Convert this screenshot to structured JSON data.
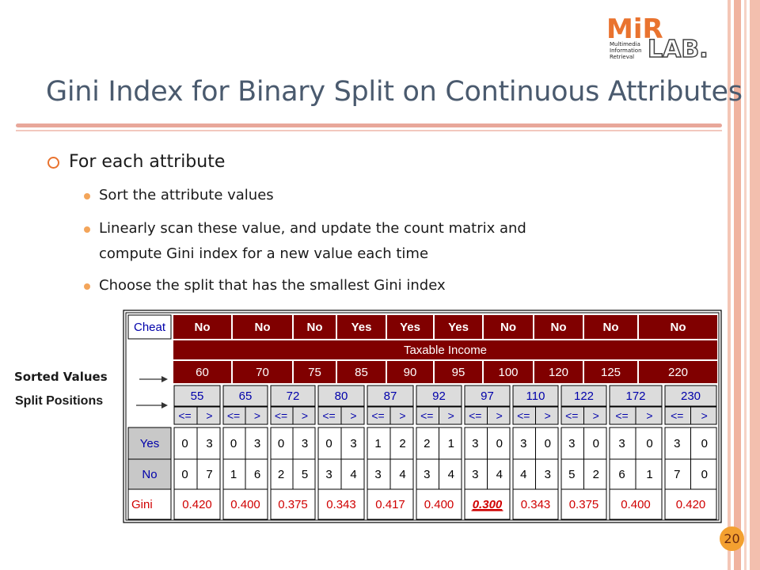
{
  "slide": {
    "title": "Gini Index for Binary Split on Continuous Attributes",
    "page_number": "20",
    "logo": {
      "mark": "MiR",
      "lab": "LAB.",
      "line1": "Multimedia",
      "line2": "Information",
      "line3": "Retrieval"
    }
  },
  "bullets": {
    "main": "For each attribute",
    "sub": [
      "Sort the attribute values",
      "Linearly scan these value, and update the count matrix and",
      "compute Gini index for a new value each time",
      "Choose the split that has the smallest Gini index"
    ]
  },
  "labels": {
    "sorted_values": "Sorted Values",
    "split_positions": "Split Positions"
  },
  "table": {
    "cheat_label": "Cheat",
    "cheat_values": [
      "No",
      "No",
      "No",
      "Yes",
      "Yes",
      "Yes",
      "No",
      "No",
      "No",
      "No"
    ],
    "attribute_header": "Taxable Income",
    "sorted_values": [
      "60",
      "70",
      "75",
      "85",
      "90",
      "95",
      "100",
      "120",
      "125",
      "220"
    ],
    "split_positions": [
      "55",
      "65",
      "72",
      "80",
      "87",
      "92",
      "97",
      "110",
      "122",
      "172",
      "230"
    ],
    "le_label": "<=",
    "gt_label": ">",
    "row_labels": {
      "yes": "Yes",
      "no": "No",
      "gini": "Gini"
    },
    "yes_counts": [
      [
        0,
        3
      ],
      [
        0,
        3
      ],
      [
        0,
        3
      ],
      [
        0,
        3
      ],
      [
        1,
        2
      ],
      [
        2,
        1
      ],
      [
        3,
        0
      ],
      [
        3,
        0
      ],
      [
        3,
        0
      ],
      [
        3,
        0
      ],
      [
        3,
        0
      ]
    ],
    "no_counts": [
      [
        0,
        7
      ],
      [
        1,
        6
      ],
      [
        2,
        5
      ],
      [
        3,
        4
      ],
      [
        3,
        4
      ],
      [
        3,
        4
      ],
      [
        3,
        4
      ],
      [
        4,
        3
      ],
      [
        5,
        2
      ],
      [
        6,
        1
      ],
      [
        7,
        0
      ]
    ],
    "gini_values": [
      "0.420",
      "0.400",
      "0.375",
      "0.343",
      "0.417",
      "0.400",
      "0.300",
      "0.343",
      "0.375",
      "0.400",
      "0.420"
    ],
    "best_split_index": 6
  },
  "colors": {
    "header_fill": "#800000",
    "label_fill": "#c8c8c8",
    "split_fill": "#dcdcdc",
    "split_text": "#0000aa",
    "gini_text": "#d00000",
    "orange": "#e9732f"
  }
}
